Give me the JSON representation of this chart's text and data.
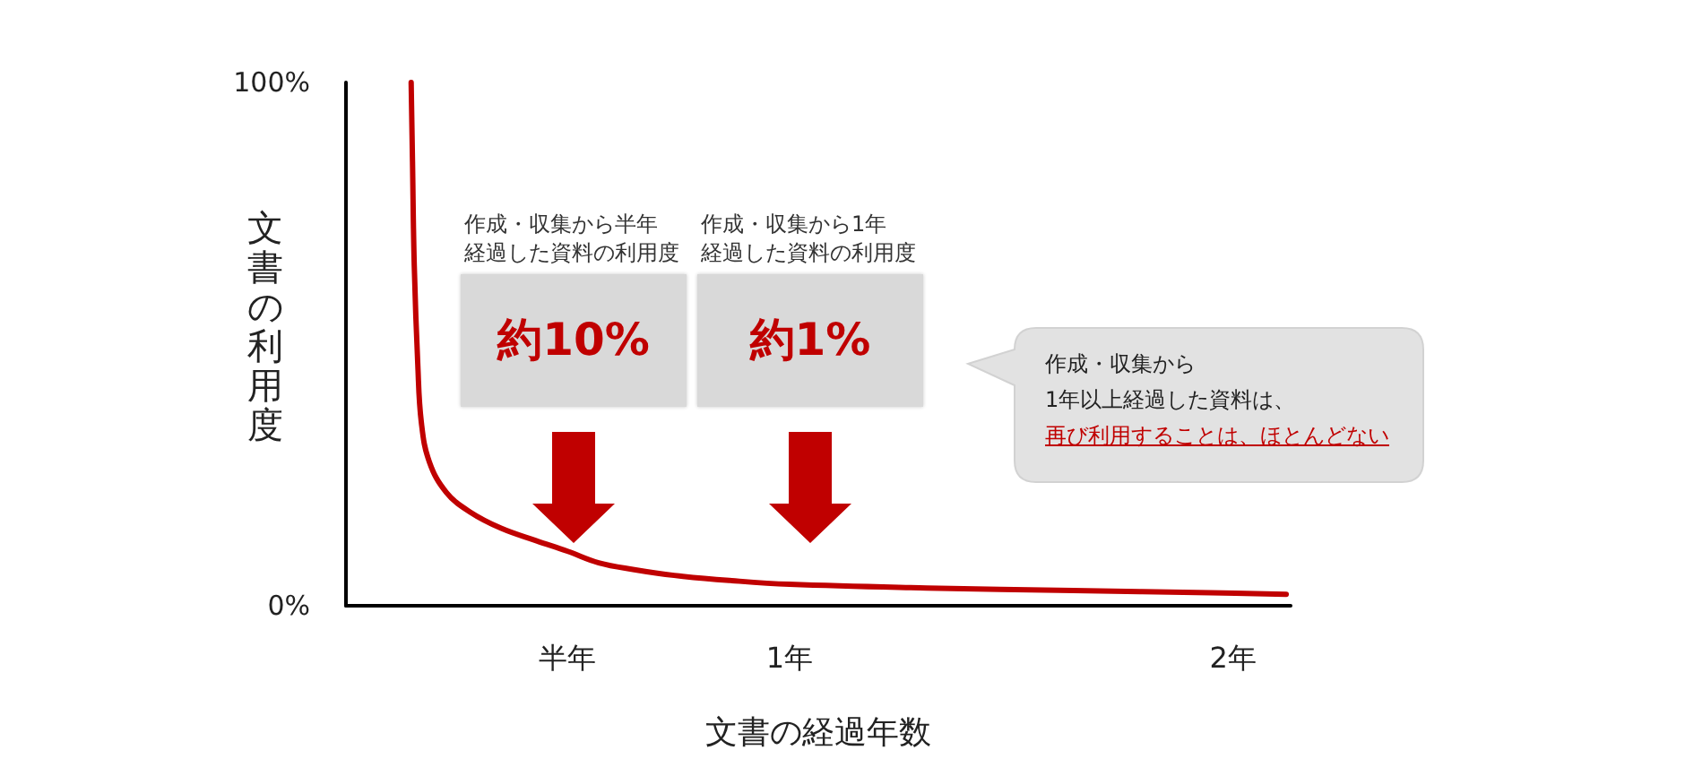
{
  "chart_data": {
    "type": "line",
    "xlabel": "文書の経過年数",
    "ylabel": "文書の利用度",
    "x": [
      0.147,
      0.15,
      0.154,
      0.162,
      0.17,
      0.188,
      0.226,
      0.28,
      0.35,
      0.43,
      0.5,
      0.57,
      0.65,
      0.74,
      0.87,
      1,
      1.31,
      1.64,
      1.95,
      2.12
    ],
    "series": [
      {
        "color": "#c00000",
        "values": [
          100,
          85,
          65,
          46,
          35,
          27.5,
          21.7,
          17.9,
          14.8,
          12.4,
          10.4,
          8.2,
          6.9,
          5.8,
          4.8,
          4.1,
          3.4,
          2.9,
          2.5,
          2.2
        ]
      }
    ],
    "xlim": [
      0,
      2.13
    ],
    "xticks": [
      {
        "value": 0.5,
        "label": "半年"
      },
      {
        "value": 1,
        "label": "1年"
      },
      {
        "value": 2,
        "label": "2年"
      }
    ],
    "ylim": [
      0,
      100
    ],
    "yticks": [
      {
        "value": 0,
        "label": "0%"
      },
      {
        "value": 100,
        "label": "100%"
      }
    ],
    "marker": "none",
    "annotations": [
      "作成・収集から半年経過した資料の利用度",
      "約10%",
      "作成・収集から1年経過した資料の利用度",
      "約1%",
      "作成・収集から1年以上経過した資料は、再び利用することは、ほとんどない"
    ]
  }
}
